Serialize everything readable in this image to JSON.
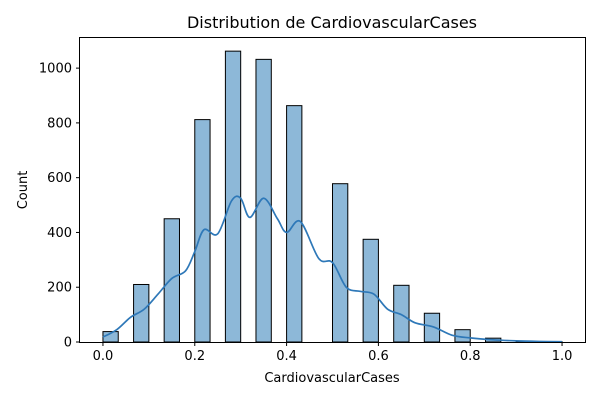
{
  "chart_data": {
    "type": "bar",
    "title": "Distribution de CardiovascularCases",
    "xlabel": "CardiovascularCases",
    "ylabel": "Count",
    "xlim": [
      -0.05,
      1.05
    ],
    "ylim": [
      0,
      1110
    ],
    "xticks": [
      0.0,
      0.2,
      0.4,
      0.6,
      0.8,
      1.0
    ],
    "xtick_labels": [
      "0.0",
      "0.2",
      "0.4",
      "0.6",
      "0.8",
      "1.0"
    ],
    "yticks": [
      0,
      200,
      400,
      600,
      800,
      1000
    ],
    "ytick_labels": [
      "0",
      "200",
      "400",
      "600",
      "800",
      "1000"
    ],
    "grid": false,
    "bin_width": 0.0333,
    "bins": [
      {
        "x0": 0.0,
        "x1": 0.0333,
        "count": 38
      },
      {
        "x0": 0.0667,
        "x1": 0.1,
        "count": 210
      },
      {
        "x0": 0.1333,
        "x1": 0.1667,
        "count": 450
      },
      {
        "x0": 0.2,
        "x1": 0.2333,
        "count": 812
      },
      {
        "x0": 0.2667,
        "x1": 0.3,
        "count": 1062
      },
      {
        "x0": 0.3333,
        "x1": 0.3667,
        "count": 1032
      },
      {
        "x0": 0.4,
        "x1": 0.4333,
        "count": 863
      },
      {
        "x0": 0.5,
        "x1": 0.5333,
        "count": 578
      },
      {
        "x0": 0.5667,
        "x1": 0.6,
        "count": 375
      },
      {
        "x0": 0.6333,
        "x1": 0.6667,
        "count": 207
      },
      {
        "x0": 0.7,
        "x1": 0.7333,
        "count": 105
      },
      {
        "x0": 0.7667,
        "x1": 0.8,
        "count": 45
      },
      {
        "x0": 0.8333,
        "x1": 0.8667,
        "count": 14
      },
      {
        "x0": 0.9,
        "x1": 0.9333,
        "count": 3
      },
      {
        "x0": 0.9667,
        "x1": 1.0,
        "count": 1
      }
    ],
    "kde": {
      "x": [
        0.0,
        0.03,
        0.06,
        0.09,
        0.12,
        0.15,
        0.18,
        0.2,
        0.22,
        0.25,
        0.28,
        0.3,
        0.32,
        0.35,
        0.38,
        0.4,
        0.43,
        0.47,
        0.5,
        0.53,
        0.56,
        0.59,
        0.62,
        0.65,
        0.68,
        0.72,
        0.76,
        0.8,
        0.85,
        0.9,
        0.95,
        1.0
      ],
      "y": [
        18,
        45,
        90,
        120,
        175,
        232,
        260,
        330,
        410,
        395,
        515,
        525,
        455,
        525,
        450,
        400,
        440,
        305,
        290,
        200,
        185,
        175,
        120,
        100,
        70,
        55,
        25,
        15,
        8,
        4,
        2,
        1
      ]
    },
    "colors": {
      "bar_fill": "#8db8d8",
      "bar_edge": "#000000",
      "kde_line": "#2e78b8"
    }
  }
}
